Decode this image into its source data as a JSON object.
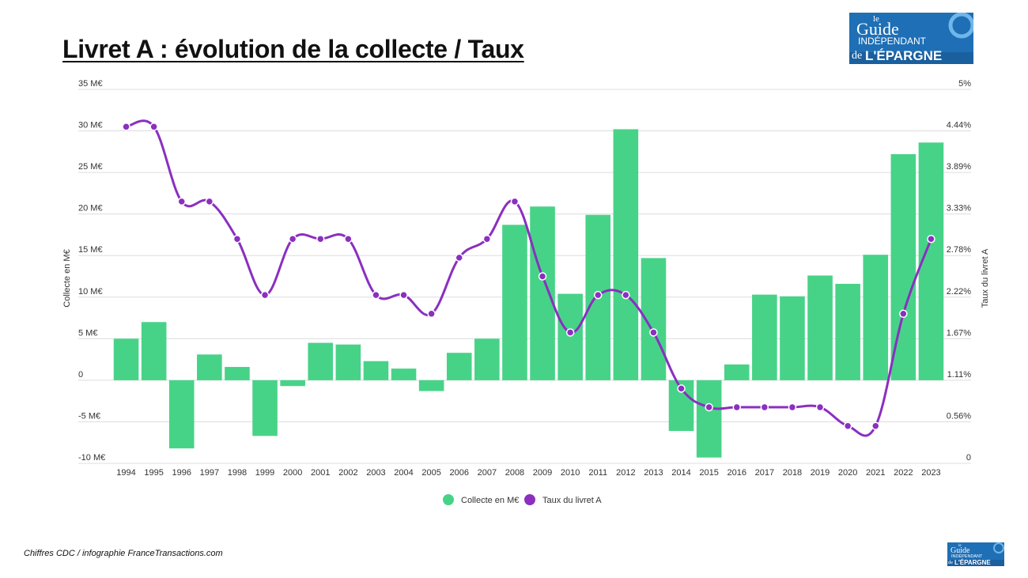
{
  "title": "Livret A : évolution de la collecte / Taux",
  "source": "Chiffres CDC / infographie FranceTransactions.com",
  "logo": {
    "line1": "le",
    "line2": "Guide",
    "line3": "INDÉPENDANT",
    "line4": "de",
    "line5": "L'ÉPARGNE",
    "bg_color": "#1e6fb5"
  },
  "chart_data": {
    "type": "bar",
    "categories": [
      "1994",
      "1995",
      "1996",
      "1997",
      "1998",
      "1999",
      "2000",
      "2001",
      "2002",
      "2003",
      "2004",
      "2005",
      "2006",
      "2007",
      "2008",
      "2009",
      "2010",
      "2011",
      "2012",
      "2013",
      "2014",
      "2015",
      "2016",
      "2017",
      "2018",
      "2019",
      "2020",
      "2021",
      "2022",
      "2023"
    ],
    "series": [
      {
        "name": "Collecte en M€",
        "type": "bar",
        "axis": "left",
        "color": "#47d387",
        "values": [
          5.0,
          7.0,
          -8.2,
          3.1,
          1.6,
          -6.7,
          -0.7,
          4.5,
          4.3,
          2.3,
          1.4,
          -1.3,
          3.3,
          5.0,
          18.7,
          20.9,
          10.4,
          19.9,
          30.2,
          14.7,
          -6.1,
          -9.3,
          1.9,
          10.3,
          10.1,
          12.6,
          11.6,
          15.1,
          27.2,
          28.6
        ]
      },
      {
        "name": "Taux du livret A",
        "type": "line",
        "axis": "right",
        "color": "#8a2fc0",
        "values": [
          4.5,
          4.5,
          3.5,
          3.5,
          3.0,
          2.25,
          3.0,
          3.0,
          3.0,
          2.25,
          2.25,
          2.0,
          2.75,
          3.0,
          3.5,
          2.5,
          1.75,
          2.25,
          2.25,
          1.75,
          1.0,
          0.75,
          0.75,
          0.75,
          0.75,
          0.75,
          0.5,
          0.5,
          2.0,
          3.0
        ]
      }
    ],
    "ylabel_left": "Collecte en M€",
    "ylabel_right": "Taux du livret A",
    "ylim_left": [
      -10,
      35
    ],
    "yticks_left": [
      "35 M€",
      "30 M€",
      "25 M€",
      "20 M€",
      "15 M€",
      "10 M€",
      "5 M€",
      "0",
      "-5 M€",
      "-10 M€"
    ],
    "ylim_right": [
      0,
      5
    ],
    "yticks_right": [
      "5%",
      "4.44%",
      "3.89%",
      "3.33%",
      "2.78%",
      "2.22%",
      "1.67%",
      "1.11%",
      "0.56%",
      "0"
    ],
    "grid": true,
    "legend": "bottom-center"
  }
}
